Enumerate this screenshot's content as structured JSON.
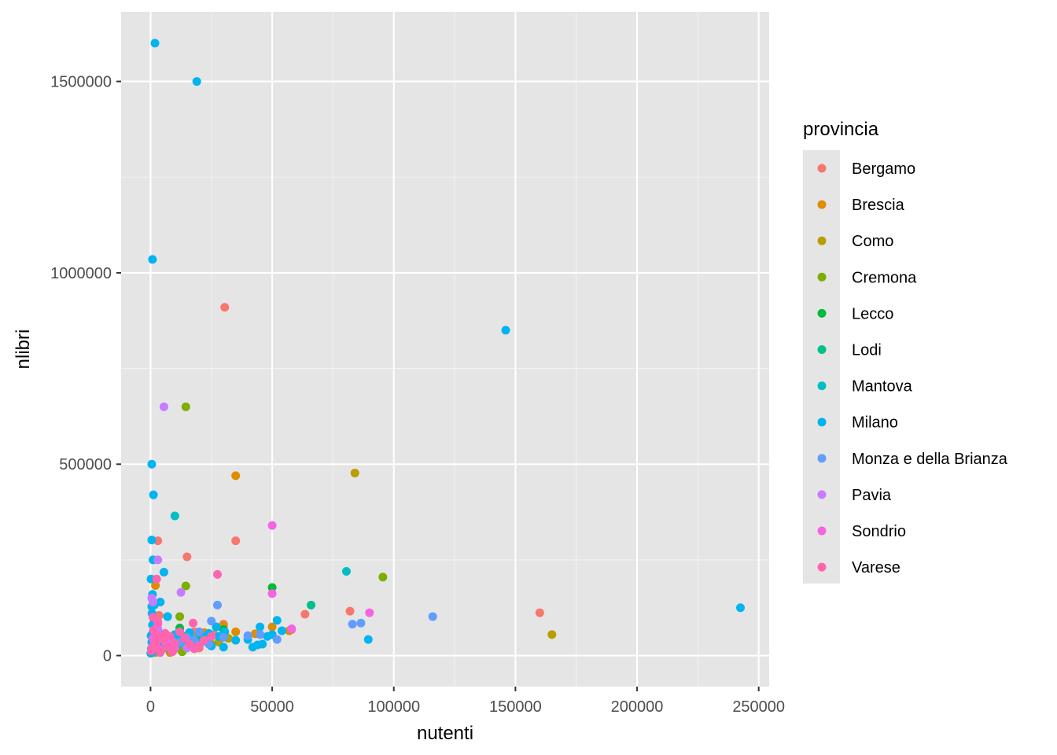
{
  "chart_data": {
    "type": "scatter",
    "xlabel": "nutenti",
    "ylabel": "nlibri",
    "xlim": [
      -12100,
      254300
    ],
    "ylim": [
      -81000,
      1682000
    ],
    "x_ticks": [
      0,
      50000,
      100000,
      150000,
      200000,
      250000
    ],
    "x_tick_labels": [
      "0",
      "50000",
      "100000",
      "150000",
      "200000",
      "250000"
    ],
    "y_ticks": [
      0,
      500000,
      1000000,
      1500000
    ],
    "y_tick_labels": [
      "0",
      "500000",
      "1000000",
      "1500000"
    ],
    "grid": true,
    "background": "#e5e5e5",
    "legend": {
      "title": "provincia",
      "placement": "right",
      "entries": [
        "Bergamo",
        "Brescia",
        "Como",
        "Cremona",
        "Lecco",
        "Lodi",
        "Mantova",
        "Milano",
        "Monza e della Brianza",
        "Pavia",
        "Sondrio",
        "Varese"
      ]
    },
    "series": [
      {
        "name": "Bergamo",
        "color": "#F8766D",
        "points": [
          [
            30500,
            910000
          ],
          [
            15000,
            258000
          ],
          [
            35000,
            300000
          ],
          [
            3000,
            300000
          ],
          [
            82000,
            116000
          ],
          [
            160000,
            112000
          ],
          [
            63500,
            108000
          ],
          [
            58000,
            68000
          ],
          [
            30000,
            82000
          ],
          [
            3500,
            105000
          ],
          [
            13000,
            48000
          ],
          [
            18000,
            62000
          ],
          [
            22000,
            38000
          ],
          [
            9000,
            30000
          ],
          [
            1500,
            18000
          ],
          [
            6000,
            42000
          ],
          [
            26000,
            55000
          ],
          [
            4000,
            12000
          ],
          [
            11000,
            22000
          ],
          [
            500,
            8000
          ],
          [
            2500,
            60000
          ],
          [
            20000,
            20000
          ]
        ]
      },
      {
        "name": "Brescia",
        "color": "#DE8C00",
        "points": [
          [
            35000,
            470000
          ],
          [
            2000,
            183000
          ],
          [
            50000,
            75000
          ],
          [
            35000,
            62000
          ],
          [
            43000,
            57000
          ],
          [
            30000,
            78000
          ],
          [
            57000,
            65000
          ],
          [
            24000,
            48000
          ],
          [
            6000,
            52000
          ],
          [
            14000,
            38000
          ],
          [
            18000,
            28000
          ],
          [
            10000,
            18000
          ],
          [
            3000,
            42000
          ],
          [
            8000,
            8000
          ],
          [
            500,
            20000
          ],
          [
            22000,
            60000
          ],
          [
            12000,
            66000
          ],
          [
            4000,
            26000
          ]
        ]
      },
      {
        "name": "Como",
        "color": "#B79F00",
        "points": [
          [
            84000,
            477000
          ],
          [
            165000,
            55000
          ],
          [
            32000,
            45000
          ],
          [
            12000,
            30000
          ],
          [
            5000,
            18000
          ],
          [
            20000,
            55000
          ],
          [
            8000,
            42000
          ],
          [
            2000,
            8000
          ],
          [
            15000,
            22000
          ],
          [
            28000,
            35000
          ]
        ]
      },
      {
        "name": "Cremona",
        "color": "#7CAE00",
        "points": [
          [
            14500,
            650000
          ],
          [
            95500,
            205000
          ],
          [
            14500,
            182000
          ],
          [
            12000,
            102000
          ],
          [
            20000,
            58000
          ],
          [
            10000,
            42000
          ],
          [
            3000,
            35000
          ],
          [
            6000,
            26000
          ],
          [
            16000,
            48000
          ],
          [
            8000,
            14000
          ],
          [
            1000,
            20000
          ],
          [
            25000,
            30000
          ],
          [
            13000,
            10000
          ]
        ]
      },
      {
        "name": "Lecco",
        "color": "#00BA38",
        "points": [
          [
            50000,
            178000
          ],
          [
            30000,
            68000
          ],
          [
            12000,
            72000
          ],
          [
            20000,
            45000
          ],
          [
            5000,
            40000
          ],
          [
            9000,
            28000
          ],
          [
            1500,
            22000
          ],
          [
            16000,
            35000
          ],
          [
            3000,
            12000
          ]
        ]
      },
      {
        "name": "Lodi",
        "color": "#00C08B",
        "points": [
          [
            66000,
            132000
          ],
          [
            30000,
            48000
          ],
          [
            22000,
            38000
          ],
          [
            10000,
            28000
          ],
          [
            4000,
            18000
          ],
          [
            15000,
            52000
          ],
          [
            500,
            10000
          ]
        ]
      },
      {
        "name": "Mantova",
        "color": "#00BFC4",
        "points": [
          [
            10000,
            365000
          ],
          [
            80500,
            220000
          ],
          [
            7000,
            102000
          ],
          [
            27000,
            75000
          ],
          [
            16000,
            48000
          ],
          [
            12000,
            32000
          ],
          [
            4000,
            24000
          ],
          [
            20000,
            58000
          ],
          [
            2000,
            12000
          ],
          [
            8000,
            40000
          ]
        ]
      },
      {
        "name": "Milano",
        "color": "#00B4F0",
        "points": [
          [
            1800,
            1600000
          ],
          [
            19000,
            1500000
          ],
          [
            800,
            1035000
          ],
          [
            146000,
            850000
          ],
          [
            242500,
            125000
          ],
          [
            500,
            500000
          ],
          [
            1200,
            420000
          ],
          [
            500,
            302000
          ],
          [
            1000,
            250000
          ],
          [
            5500,
            218000
          ],
          [
            200,
            200000
          ],
          [
            800,
            160000
          ],
          [
            4000,
            140000
          ],
          [
            500,
            128000
          ],
          [
            1500,
            132000
          ],
          [
            89500,
            42000
          ],
          [
            45000,
            75000
          ],
          [
            54000,
            65000
          ],
          [
            52000,
            92000
          ],
          [
            50000,
            55000
          ],
          [
            42000,
            22000
          ],
          [
            44000,
            28000
          ],
          [
            40000,
            42000
          ],
          [
            48000,
            50000
          ],
          [
            30500,
            62000
          ],
          [
            28000,
            50000
          ],
          [
            30000,
            22000
          ],
          [
            27000,
            75000
          ],
          [
            25000,
            25000
          ],
          [
            22000,
            48000
          ],
          [
            20000,
            32000
          ],
          [
            18000,
            22000
          ],
          [
            15000,
            35000
          ],
          [
            12000,
            42000
          ],
          [
            10000,
            55000
          ],
          [
            8000,
            18000
          ],
          [
            6000,
            24000
          ],
          [
            5000,
            38000
          ],
          [
            4000,
            30000
          ],
          [
            3000,
            68000
          ],
          [
            2500,
            14000
          ],
          [
            2000,
            45000
          ],
          [
            1500,
            92000
          ],
          [
            1000,
            60000
          ],
          [
            800,
            80000
          ],
          [
            500,
            35000
          ],
          [
            300,
            18000
          ],
          [
            200,
            52000
          ],
          [
            100,
            6000
          ],
          [
            600,
            110000
          ],
          [
            7000,
            102000
          ],
          [
            16000,
            60000
          ],
          [
            24000,
            58000
          ],
          [
            35000,
            40000
          ],
          [
            46000,
            30000
          ],
          [
            11000,
            28000
          ]
        ]
      },
      {
        "name": "Monza e della Brianza",
        "color": "#619CFF",
        "points": [
          [
            116000,
            102000
          ],
          [
            83000,
            82000
          ],
          [
            86500,
            85000
          ],
          [
            27500,
            132000
          ],
          [
            25000,
            90000
          ],
          [
            52000,
            42000
          ],
          [
            40000,
            52000
          ],
          [
            45000,
            55000
          ],
          [
            20000,
            62000
          ],
          [
            15000,
            48000
          ],
          [
            12000,
            35000
          ],
          [
            8000,
            28000
          ],
          [
            5000,
            50000
          ],
          [
            30000,
            48000
          ],
          [
            2000,
            22000
          ],
          [
            24000,
            30000
          ],
          [
            18000,
            40000
          ]
        ]
      },
      {
        "name": "Pavia",
        "color": "#C77CFF",
        "points": [
          [
            5500,
            650000
          ],
          [
            3000,
            250000
          ],
          [
            12500,
            165000
          ],
          [
            500,
            150000
          ],
          [
            1000,
            140000
          ],
          [
            3000,
            70000
          ],
          [
            6000,
            48000
          ],
          [
            2000,
            30000
          ],
          [
            9000,
            36000
          ],
          [
            15000,
            20000
          ],
          [
            4000,
            12000
          ]
        ]
      },
      {
        "name": "Sondrio",
        "color": "#F564E3",
        "points": [
          [
            50000,
            340000
          ],
          [
            50000,
            162000
          ],
          [
            90000,
            112000
          ],
          [
            58000,
            70000
          ],
          [
            3000,
            82000
          ],
          [
            6000,
            36000
          ],
          [
            1000,
            44000
          ],
          [
            10000,
            20000
          ],
          [
            4000,
            12000
          ],
          [
            2000,
            58000
          ]
        ]
      },
      {
        "name": "Varese",
        "color": "#FF64B0",
        "points": [
          [
            27500,
            212000
          ],
          [
            2500,
            200000
          ],
          [
            1000,
            100000
          ],
          [
            3000,
            88000
          ],
          [
            17500,
            85000
          ],
          [
            12000,
            62000
          ],
          [
            8000,
            50000
          ],
          [
            5000,
            42000
          ],
          [
            2000,
            35000
          ],
          [
            1500,
            28000
          ],
          [
            500,
            20000
          ],
          [
            300,
            12000
          ],
          [
            6000,
            58000
          ],
          [
            10000,
            32000
          ],
          [
            14000,
            45000
          ],
          [
            20000,
            26000
          ],
          [
            22000,
            40000
          ],
          [
            18000,
            18000
          ],
          [
            7000,
            22000
          ],
          [
            4000,
            8000
          ],
          [
            9000,
            10000
          ],
          [
            1200,
            66000
          ],
          [
            2800,
            52000
          ],
          [
            16000,
            30000
          ],
          [
            25000,
            50000
          ],
          [
            3500,
            18000
          ]
        ]
      }
    ]
  }
}
